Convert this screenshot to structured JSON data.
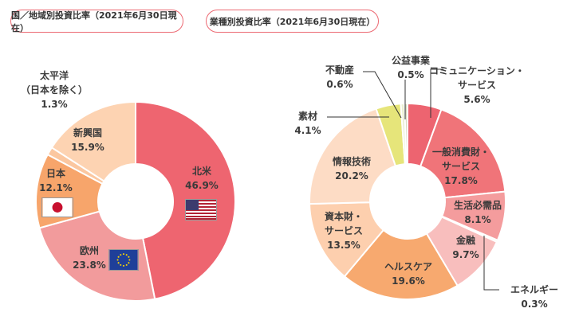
{
  "chart_data": [
    {
      "type": "pie",
      "title": "国／地域別投資比率（2021年6月30日現在）",
      "slices": [
        {
          "label": "北米",
          "value": 46.9,
          "text": "46.9%",
          "color": "#ee6570"
        },
        {
          "label": "欧州",
          "value": 23.8,
          "text": "23.8%",
          "color": "#f29b9c"
        },
        {
          "label": "日本",
          "value": 12.1,
          "text": "12.1%",
          "color": "#f7a56b"
        },
        {
          "label_lines": [
            "太平洋",
            "（日本を除く）"
          ],
          "label": "太平洋（日本を除く）",
          "value": 1.3,
          "text": "1.3%",
          "color": "#fbc7a0"
        },
        {
          "label": "新興国",
          "value": 15.9,
          "text": "15.9%",
          "color": "#fdd3b2"
        }
      ]
    },
    {
      "type": "pie",
      "title": "業種別投資比率（2021年6月30日現在）",
      "slices": [
        {
          "label": "コミュニケーション・サービス",
          "label_lines": [
            "コミュニケーション・",
            "サービス"
          ],
          "value": 5.6,
          "text": "5.6%",
          "color": "#ed6470"
        },
        {
          "label": "一般消費財・サービス",
          "label_lines": [
            "一般消費財・",
            "サービス"
          ],
          "value": 17.8,
          "text": "17.8%",
          "color": "#f07479"
        },
        {
          "label": "生活必需品",
          "value": 8.1,
          "text": "8.1%",
          "color": "#f49c9d"
        },
        {
          "label": "エネルギー",
          "value": 0.3,
          "text": "0.3%",
          "color": "#f7f0c0"
        },
        {
          "label": "金融",
          "value": 9.7,
          "text": "9.7%",
          "color": "#f8bebd"
        },
        {
          "label": "ヘルスケア",
          "value": 19.6,
          "text": "19.6%",
          "color": "#f7a96f"
        },
        {
          "label": "資本財・サービス",
          "label_lines": [
            "資本財・",
            "サービス"
          ],
          "value": 13.5,
          "text": "13.5%",
          "color": "#fdcfae"
        },
        {
          "label": "情報技術",
          "value": 20.2,
          "text": "20.2%",
          "color": "#fddcc5"
        },
        {
          "label": "素材",
          "value": 4.1,
          "text": "4.1%",
          "color": "#e6e57a"
        },
        {
          "label": "不動産",
          "value": 0.6,
          "text": "0.6%",
          "color": "#eaefd2"
        },
        {
          "label": "公益事業",
          "value": 0.5,
          "text": "0.5%",
          "color": "#d7dcc0"
        }
      ]
    }
  ]
}
